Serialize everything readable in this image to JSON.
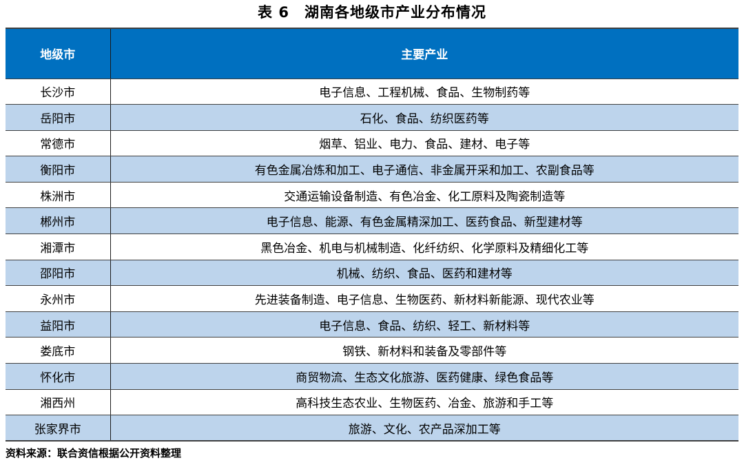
{
  "title": "表 6　湖南各地级市产业分布情况",
  "table": {
    "headers": [
      "地级市",
      "主要产业"
    ],
    "rows": [
      {
        "city": "长沙市",
        "industries": "电子信息、工程机械、食品、生物制药等"
      },
      {
        "city": "岳阳市",
        "industries": "石化、食品、纺织医药等"
      },
      {
        "city": "常德市",
        "industries": "烟草、铝业、电力、食品、建材、电子等"
      },
      {
        "city": "衡阳市",
        "industries": "有色金属冶炼和加工、电子通信、非金属开采和加工、农副食品等"
      },
      {
        "city": "株洲市",
        "industries": "交通运输设备制造、有色冶金、化工原料及陶瓷制造等"
      },
      {
        "city": "郴州市",
        "industries": "电子信息、能源、有色金属精深加工、医药食品、新型建材等"
      },
      {
        "city": "湘潭市",
        "industries": "黑色冶金、机电与机械制造、化纤纺织、化学原料及精细化工等"
      },
      {
        "city": "邵阳市",
        "industries": "机械、纺织、食品、医药和建材等"
      },
      {
        "city": "永州市",
        "industries": "先进装备制造、电子信息、生物医药、新材料新能源、现代农业等"
      },
      {
        "city": "益阳市",
        "industries": "电子信息、食品、纺织、轻工、新材料等"
      },
      {
        "city": "娄底市",
        "industries": "钢铁、新材料和装备及零部件等"
      },
      {
        "city": "怀化市",
        "industries": "商贸物流、生态文化旅游、医药健康、绿色食品等"
      },
      {
        "city": "湘西州",
        "industries": "高科技生态农业、生物医药、冶金、旅游和手工等"
      },
      {
        "city": "张家界市",
        "industries": "旅游、文化、农产品深加工等"
      }
    ]
  },
  "footer": {
    "source": "资料来源：联合资信根据公开资料整理"
  },
  "colors": {
    "header_bg": "#0070C0",
    "alt_row_bg": "#BDD4EC",
    "border": "#3F3F3F",
    "header_text": "#FFFFFF",
    "body_text": "#000000"
  }
}
